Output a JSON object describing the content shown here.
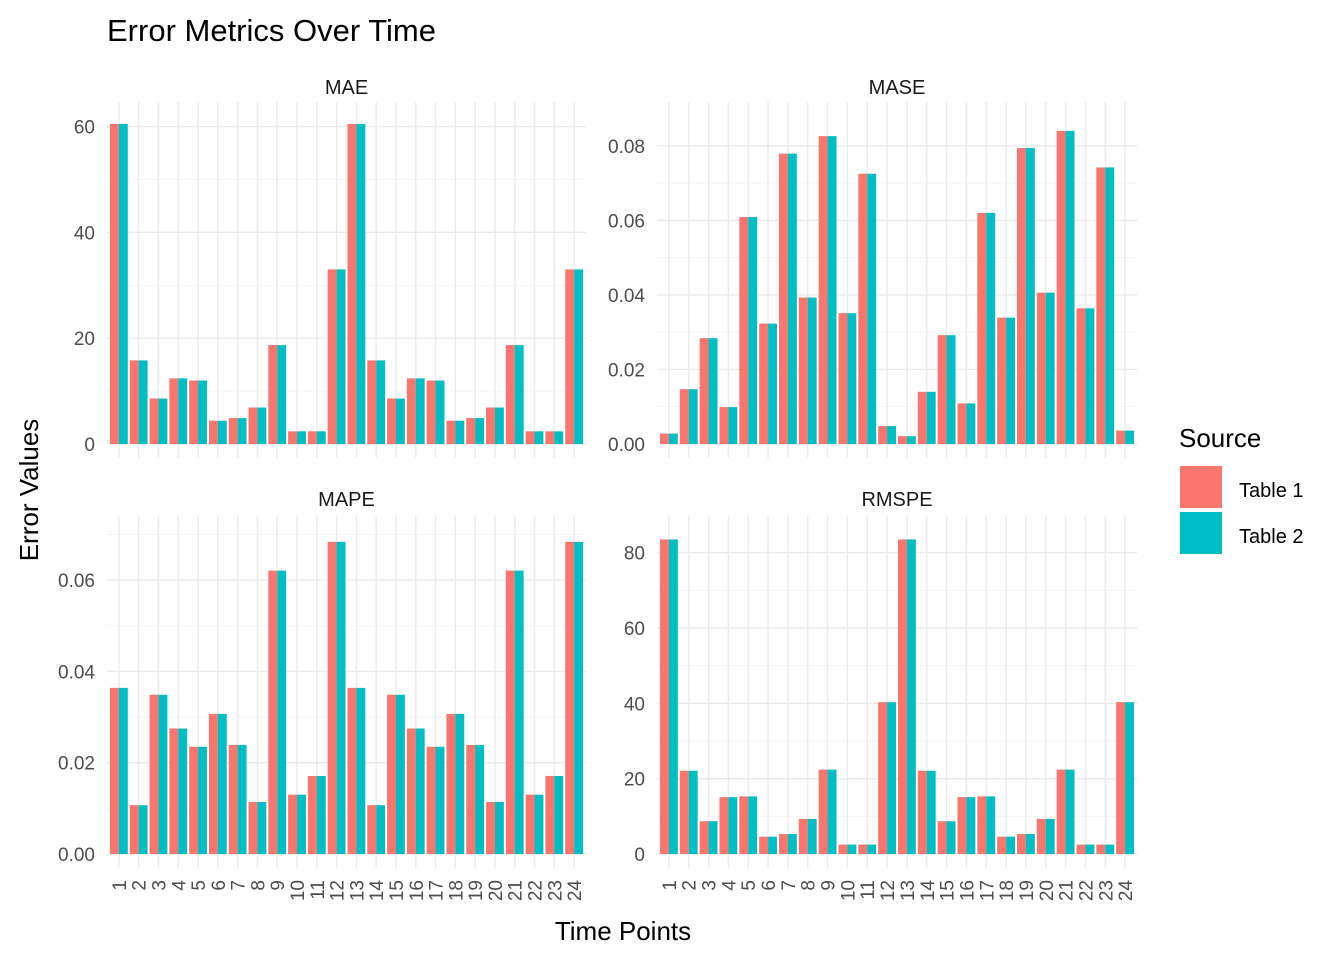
{
  "title": "Error Metrics Over Time",
  "colors": {
    "Table 1": "#F8766D",
    "Table 2": "#00BFC4"
  },
  "chart_data": {
    "type": "bar",
    "title": "Error Metrics Over Time",
    "xlabel": "Time Points",
    "ylabel": "Error Values",
    "legend": {
      "title": "Source",
      "position": "right",
      "entries": [
        "Table 1",
        "Table 2"
      ]
    },
    "grid": true,
    "categories": [
      "1",
      "2",
      "3",
      "4",
      "5",
      "6",
      "7",
      "8",
      "9",
      "10",
      "11",
      "12",
      "13",
      "14",
      "15",
      "16",
      "17",
      "18",
      "19",
      "20",
      "21",
      "22",
      "23",
      "24"
    ],
    "facets": [
      {
        "name": "MAE",
        "ylim": [
          0,
          62
        ],
        "yticks": [
          0,
          20,
          40,
          60
        ],
        "yticklabels": [
          "0",
          "20",
          "40",
          "60"
        ],
        "series": [
          {
            "name": "Table 1",
            "values": [
              60.5,
              15.8,
              8.6,
              12.4,
              12.0,
              4.4,
              4.9,
              6.9,
              18.7,
              2.4,
              2.4,
              33.0,
              60.5,
              15.8,
              8.6,
              12.4,
              12.0,
              4.4,
              4.9,
              6.9,
              18.7,
              2.4,
              2.4,
              33.0
            ]
          },
          {
            "name": "Table 2",
            "values": [
              60.5,
              15.8,
              8.6,
              12.4,
              12.0,
              4.4,
              4.9,
              6.9,
              18.7,
              2.4,
              2.4,
              33.0,
              60.5,
              15.8,
              8.6,
              12.4,
              12.0,
              4.4,
              4.9,
              6.9,
              18.7,
              2.4,
              2.4,
              33.0
            ]
          }
        ]
      },
      {
        "name": "MASE",
        "ylim": [
          0,
          0.088
        ],
        "yticks": [
          0,
          0.02,
          0.04,
          0.06,
          0.08
        ],
        "yticklabels": [
          "0.00",
          "0.02",
          "0.04",
          "0.06",
          "0.08"
        ],
        "series": [
          {
            "name": "Table 1",
            "values": [
              0.0028,
              0.0147,
              0.0284,
              0.0099,
              0.0609,
              0.0323,
              0.0779,
              0.0393,
              0.0826,
              0.0351,
              0.0725,
              0.0048,
              0.0021,
              0.014,
              0.0292,
              0.0109,
              0.062,
              0.0339,
              0.0794,
              0.0406,
              0.084,
              0.0364,
              0.0742,
              0.0036
            ]
          },
          {
            "name": "Table 2",
            "values": [
              0.0028,
              0.0147,
              0.0284,
              0.0099,
              0.0609,
              0.0323,
              0.0779,
              0.0393,
              0.0826,
              0.0351,
              0.0725,
              0.0048,
              0.0021,
              0.014,
              0.0292,
              0.0109,
              0.062,
              0.0339,
              0.0794,
              0.0406,
              0.084,
              0.0364,
              0.0742,
              0.0036
            ]
          }
        ]
      },
      {
        "name": "MAPE",
        "ylim": [
          0,
          0.071
        ],
        "yticks": [
          0,
          0.02,
          0.04,
          0.06
        ],
        "yticklabels": [
          "0.00",
          "0.02",
          "0.04",
          "0.06"
        ],
        "series": [
          {
            "name": "Table 1",
            "values": [
              0.0364,
              0.0107,
              0.0349,
              0.0275,
              0.0235,
              0.0307,
              0.0239,
              0.0114,
              0.0621,
              0.013,
              0.0171,
              0.0684,
              0.0364,
              0.0107,
              0.0349,
              0.0275,
              0.0235,
              0.0307,
              0.0239,
              0.0114,
              0.0621,
              0.013,
              0.0171,
              0.0684
            ]
          },
          {
            "name": "Table 2",
            "values": [
              0.0364,
              0.0107,
              0.0349,
              0.0275,
              0.0235,
              0.0307,
              0.0239,
              0.0114,
              0.0621,
              0.013,
              0.0171,
              0.0684,
              0.0364,
              0.0107,
              0.0349,
              0.0275,
              0.0235,
              0.0307,
              0.0239,
              0.0114,
              0.0621,
              0.013,
              0.0171,
              0.0684
            ]
          }
        ]
      },
      {
        "name": "RMSPE",
        "ylim": [
          0,
          86
        ],
        "yticks": [
          0,
          20,
          40,
          60,
          80
        ],
        "yticklabels": [
          "0",
          "20",
          "40",
          "60",
          "80"
        ],
        "series": [
          {
            "name": "Table 1",
            "values": [
              83.5,
              22.1,
              8.7,
              15.1,
              15.3,
              4.6,
              5.3,
              9.3,
              22.4,
              2.5,
              2.5,
              40.3,
              83.5,
              22.1,
              8.7,
              15.1,
              15.3,
              4.6,
              5.3,
              9.3,
              22.4,
              2.5,
              2.5,
              40.3
            ]
          },
          {
            "name": "Table 2",
            "values": [
              83.5,
              22.1,
              8.7,
              15.1,
              15.3,
              4.6,
              5.3,
              9.3,
              22.4,
              2.5,
              2.5,
              40.3,
              83.5,
              22.1,
              8.7,
              15.1,
              15.3,
              4.6,
              5.3,
              9.3,
              22.4,
              2.5,
              2.5,
              40.3
            ]
          }
        ]
      }
    ]
  }
}
